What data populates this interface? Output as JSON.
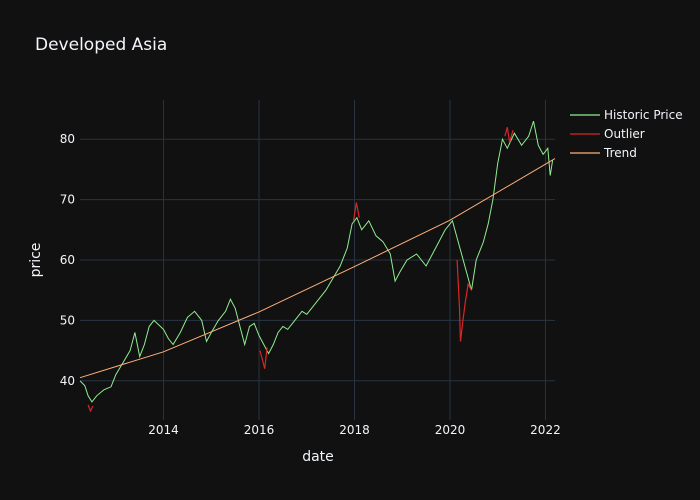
{
  "chart_data": {
    "type": "line",
    "title": "Developed Asia",
    "xlabel": "date",
    "ylabel": "price",
    "xlim": [
      2012.25,
      2022.2
    ],
    "ylim": [
      33.5,
      86.5
    ],
    "x_ticks": [
      2014,
      2016,
      2018,
      2020,
      2022
    ],
    "x_tick_labels": [
      "2014",
      "2016",
      "2018",
      "2020",
      "2022"
    ],
    "y_ticks": [
      40,
      50,
      60,
      70,
      80
    ],
    "y_tick_labels": [
      "40",
      "50",
      "60",
      "70",
      "80"
    ],
    "grid": true,
    "legend_position": "top-right",
    "series": [
      {
        "name": "Historic Price",
        "color": "#90ee90",
        "points": [
          [
            2012.25,
            40.0
          ],
          [
            2012.35,
            39.2
          ],
          [
            2012.42,
            37.5
          ],
          [
            2012.5,
            36.5
          ],
          [
            2012.6,
            37.5
          ],
          [
            2012.75,
            38.5
          ],
          [
            2012.9,
            39.0
          ],
          [
            2013.0,
            41.0
          ],
          [
            2013.15,
            43.0
          ],
          [
            2013.3,
            45.0
          ],
          [
            2013.4,
            48.0
          ],
          [
            2013.5,
            44.0
          ],
          [
            2013.6,
            46.0
          ],
          [
            2013.7,
            49.0
          ],
          [
            2013.8,
            50.0
          ],
          [
            2014.0,
            48.5
          ],
          [
            2014.1,
            47.0
          ],
          [
            2014.2,
            46.0
          ],
          [
            2014.35,
            48.0
          ],
          [
            2014.5,
            50.5
          ],
          [
            2014.65,
            51.5
          ],
          [
            2014.8,
            50.0
          ],
          [
            2014.9,
            46.5
          ],
          [
            2015.0,
            48.0
          ],
          [
            2015.15,
            50.0
          ],
          [
            2015.3,
            51.5
          ],
          [
            2015.4,
            53.5
          ],
          [
            2015.5,
            52.0
          ],
          [
            2015.6,
            49.0
          ],
          [
            2015.7,
            46.0
          ],
          [
            2015.8,
            49.0
          ],
          [
            2015.9,
            49.5
          ],
          [
            2016.0,
            47.5
          ],
          [
            2016.2,
            44.5
          ],
          [
            2016.3,
            46.0
          ],
          [
            2016.4,
            48.0
          ],
          [
            2016.5,
            49.0
          ],
          [
            2016.6,
            48.5
          ],
          [
            2016.75,
            50.0
          ],
          [
            2016.9,
            51.5
          ],
          [
            2017.0,
            51.0
          ],
          [
            2017.2,
            53.0
          ],
          [
            2017.4,
            55.0
          ],
          [
            2017.55,
            57.0
          ],
          [
            2017.7,
            59.0
          ],
          [
            2017.85,
            62.0
          ],
          [
            2017.95,
            66.0
          ],
          [
            2018.05,
            67.0
          ],
          [
            2018.15,
            65.0
          ],
          [
            2018.3,
            66.5
          ],
          [
            2018.45,
            64.0
          ],
          [
            2018.6,
            63.0
          ],
          [
            2018.75,
            61.0
          ],
          [
            2018.85,
            56.5
          ],
          [
            2018.95,
            58.0
          ],
          [
            2019.1,
            60.0
          ],
          [
            2019.3,
            61.0
          ],
          [
            2019.5,
            59.0
          ],
          [
            2019.7,
            62.0
          ],
          [
            2019.9,
            65.0
          ],
          [
            2020.0,
            66.0
          ],
          [
            2020.05,
            66.5
          ],
          [
            2020.45,
            55.0
          ],
          [
            2020.55,
            60.0
          ],
          [
            2020.7,
            63.0
          ],
          [
            2020.8,
            66.0
          ],
          [
            2020.9,
            70.0
          ],
          [
            2021.0,
            76.0
          ],
          [
            2021.1,
            80.0
          ],
          [
            2021.2,
            78.5
          ],
          [
            2021.35,
            81.0
          ],
          [
            2021.5,
            79.0
          ],
          [
            2021.65,
            80.5
          ],
          [
            2021.75,
            83.0
          ],
          [
            2021.85,
            79.0
          ],
          [
            2021.95,
            77.5
          ],
          [
            2022.05,
            78.5
          ],
          [
            2022.1,
            74.0
          ],
          [
            2022.15,
            76.5
          ]
        ]
      },
      {
        "name": "Outlier",
        "color": "#d62728",
        "segments": [
          [
            [
              2012.42,
              36.0
            ],
            [
              2012.47,
              35.0
            ],
            [
              2012.52,
              35.8
            ]
          ],
          [
            [
              2016.02,
              45.0
            ],
            [
              2016.07,
              43.5
            ],
            [
              2016.12,
              42.0
            ],
            [
              2016.17,
              45.5
            ]
          ],
          [
            [
              2017.98,
              66.5
            ],
            [
              2018.04,
              69.5
            ],
            [
              2018.1,
              67.0
            ]
          ],
          [
            [
              2020.15,
              60.0
            ],
            [
              2020.2,
              52.0
            ],
            [
              2020.22,
              46.5
            ],
            [
              2020.27,
              50.0
            ],
            [
              2020.32,
              53.0
            ],
            [
              2020.38,
              56.0
            ],
            [
              2020.45,
              55.0
            ]
          ],
          [
            [
              2021.15,
              80.5
            ],
            [
              2021.2,
              82.0
            ],
            [
              2021.25,
              79.5
            ],
            [
              2021.32,
              81.5
            ]
          ]
        ]
      },
      {
        "name": "Trend",
        "color": "#ffb07a",
        "x": [
          2012.25,
          2014,
          2016,
          2018,
          2020,
          2022.2
        ],
        "values": [
          40.5,
          44.8,
          51.4,
          58.9,
          66.6,
          76.8
        ]
      }
    ]
  }
}
